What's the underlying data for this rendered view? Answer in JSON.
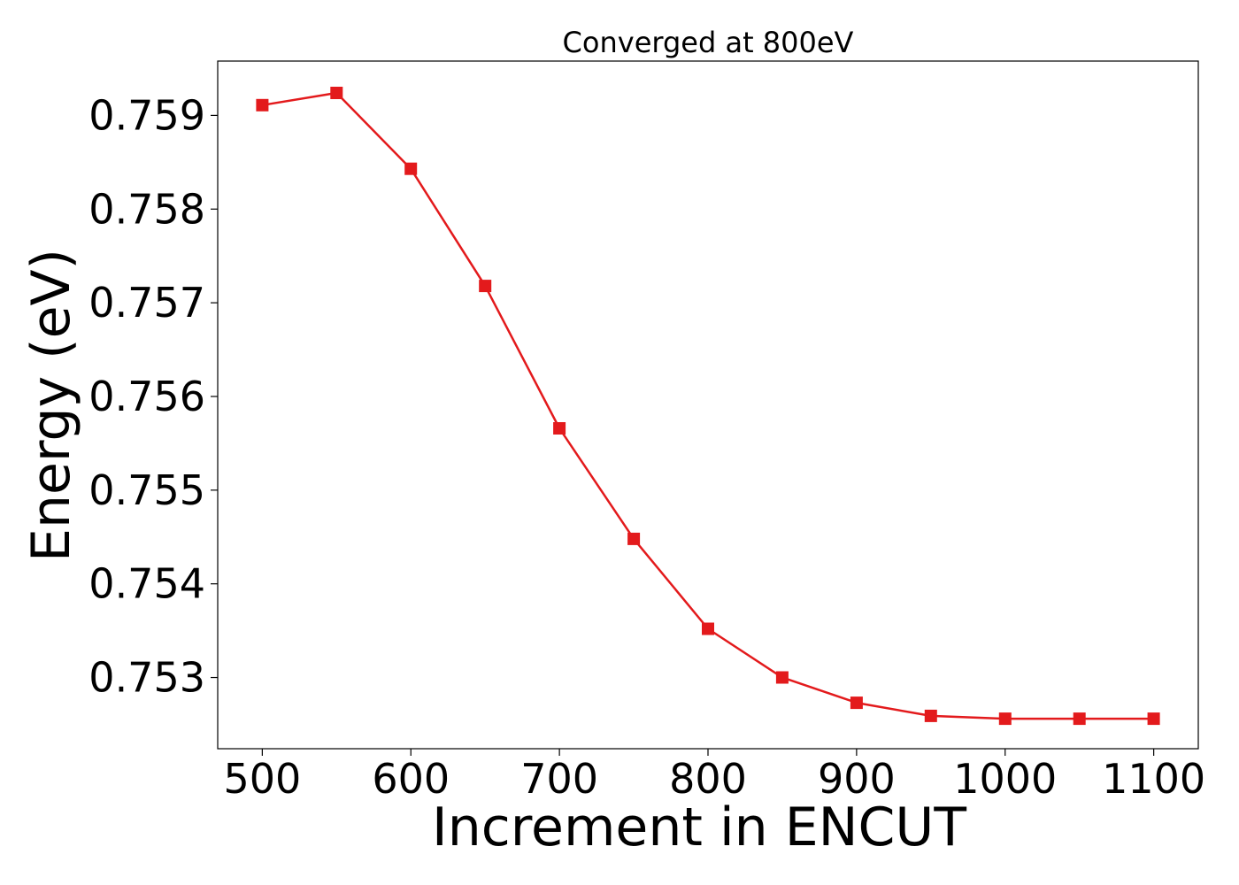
{
  "chart_data": {
    "type": "line",
    "title": "Converged at 800eV",
    "xlabel": "Increment in ENCUT",
    "ylabel": "Energy (eV)",
    "xlim": [
      470,
      1130
    ],
    "ylim": [
      0.75224,
      0.75958
    ],
    "xticks": [
      500,
      600,
      700,
      800,
      900,
      1000,
      1100
    ],
    "xtick_labels": [
      "500",
      "600",
      "700",
      "800",
      "900",
      "1000",
      "1100"
    ],
    "yticks": [
      0.753,
      0.754,
      0.755,
      0.756,
      0.757,
      0.758,
      0.759
    ],
    "ytick_labels": [
      "0.753",
      "0.754",
      "0.755",
      "0.756",
      "0.757",
      "0.758",
      "0.759"
    ],
    "grid": false,
    "legend": "none",
    "marker": "square",
    "color": "#e31a1c",
    "series": [
      {
        "x": [
          500,
          550,
          600,
          650,
          700,
          750,
          800,
          850,
          900,
          950,
          1000,
          1050,
          1100
        ],
        "values": [
          0.75911,
          0.75924,
          0.75843,
          0.75718,
          0.75566,
          0.75448,
          0.75352,
          0.753,
          0.75273,
          0.75259,
          0.75256,
          0.75256,
          0.75256
        ]
      }
    ]
  }
}
